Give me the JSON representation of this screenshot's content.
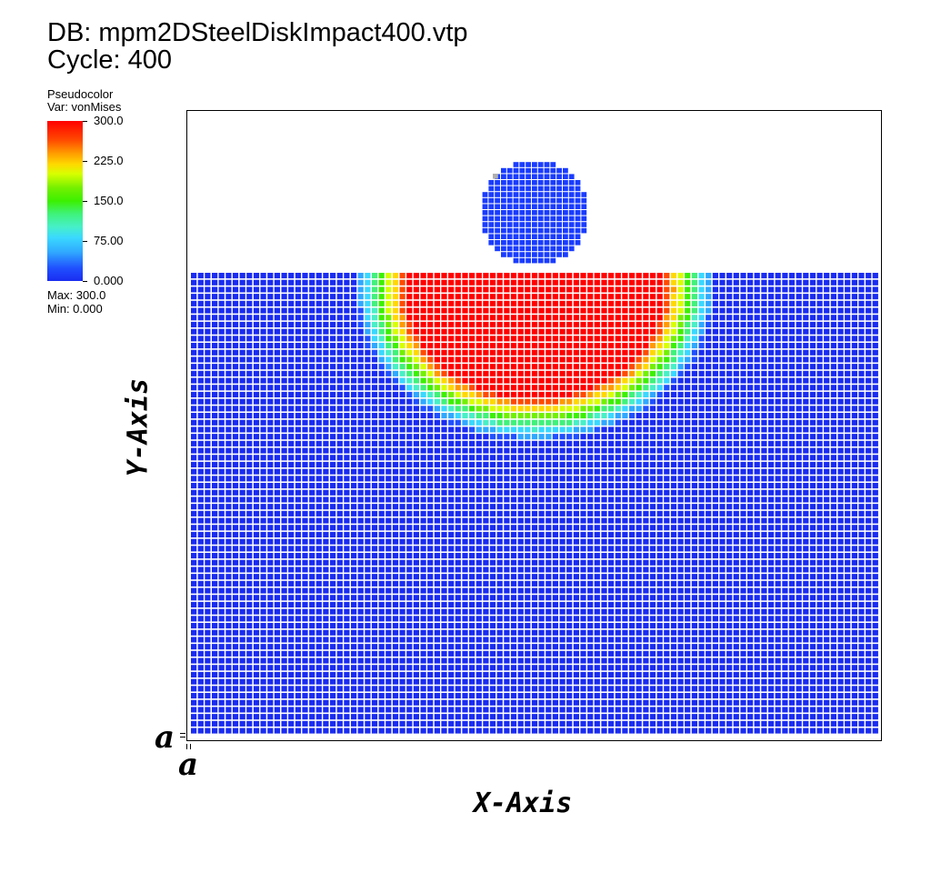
{
  "header": {
    "db_line": "DB: mpm2DSteelDiskImpact400.vtp",
    "cycle_line": "Cycle: 400"
  },
  "legend": {
    "title": "Pseudocolor",
    "variable": "Var: vonMises",
    "ticks": [
      "300.0",
      "225.0",
      "150.0",
      "75.00",
      "0.000"
    ],
    "max_label": "Max:  300.0",
    "min_label": "Min:  0.000",
    "colormap": [
      "#1a2cf0",
      "#2050ff",
      "#30a8ff",
      "#3ad8ff",
      "#47f0c6",
      "#3ff27a",
      "#3cf000",
      "#72f000",
      "#d8ff00",
      "#ffd800",
      "#ff9a00",
      "#ff4a00",
      "#ff0000"
    ]
  },
  "axes": {
    "x_title": "X-Axis",
    "y_title": "Y-Axis",
    "x_tick_label": "a",
    "y_tick_label": "a"
  },
  "colors": {
    "particle_low": "#1a3cff",
    "particle_high": "#ee1c10",
    "particle_gap": "#ffffff",
    "gray_particle": "#b0b0b0"
  }
}
